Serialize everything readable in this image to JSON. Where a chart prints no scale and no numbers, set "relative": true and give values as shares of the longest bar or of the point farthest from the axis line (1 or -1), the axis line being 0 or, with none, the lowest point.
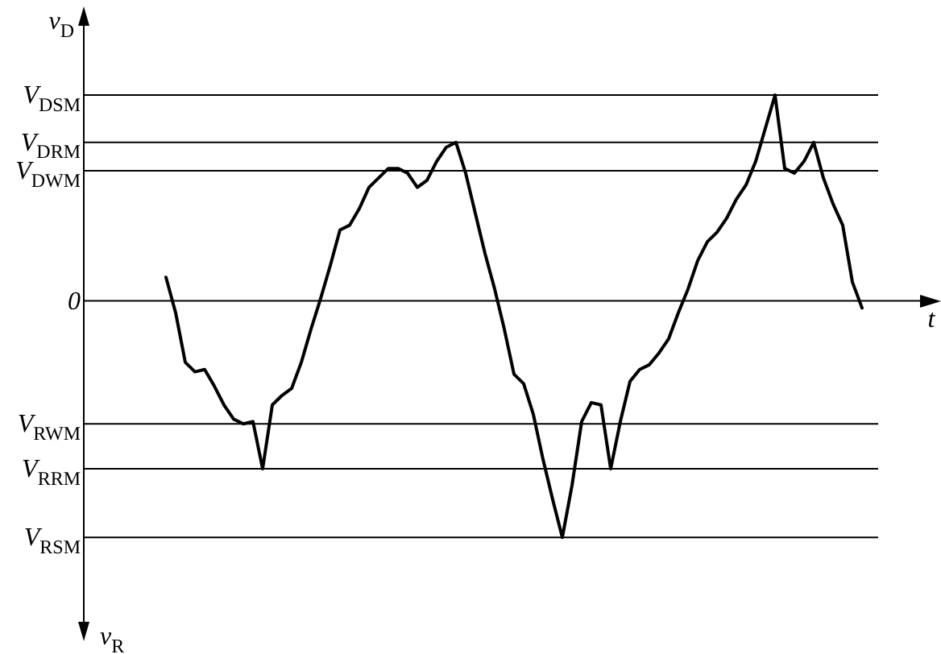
{
  "chart_data": {
    "type": "line",
    "relative": true,
    "color": "#000000",
    "marker": "none",
    "line_style": "solid",
    "legend": false,
    "xlabel": "t",
    "ylabel": "v$_{D}$",
    "annotations": [
      "v$_{R}$"
    ],
    "categories": [
      null,
      null,
      null,
      null,
      null,
      null,
      null,
      null,
      null,
      null,
      null,
      null,
      null,
      null,
      null,
      null,
      null,
      null,
      null,
      null,
      null,
      null,
      null,
      null,
      null,
      null,
      null,
      null,
      null,
      null,
      null,
      null,
      null,
      null,
      null,
      null,
      null,
      null,
      null,
      null,
      null,
      null,
      null,
      null,
      null,
      null,
      null,
      null,
      null,
      null,
      null,
      null,
      null,
      null,
      null,
      null,
      null,
      null,
      null,
      null,
      null,
      null,
      null,
      null,
      null,
      null,
      null,
      null,
      null,
      null,
      null,
      null,
      null
    ],
    "values": [
      0.1,
      -0.05,
      -0.26,
      -0.3,
      -0.29,
      -0.36,
      -0.44,
      -0.5,
      -0.52,
      -0.51,
      -0.71,
      -0.44,
      -0.4,
      -0.37,
      -0.26,
      -0.12,
      0.01,
      0.15,
      0.3,
      0.32,
      0.39,
      0.48,
      0.52,
      0.56,
      0.56,
      0.54,
      0.48,
      0.51,
      0.59,
      0.65,
      0.67,
      0.54,
      0.37,
      0.2,
      0.05,
      -0.12,
      -0.31,
      -0.35,
      -0.48,
      -0.67,
      -0.84,
      -1,
      -0.78,
      -0.51,
      -0.43,
      -0.44,
      -0.71,
      -0.51,
      -0.34,
      -0.29,
      -0.27,
      -0.22,
      -0.16,
      -0.05,
      0.05,
      0.17,
      0.25,
      0.29,
      0.35,
      0.43,
      0.49,
      0.59,
      0.73,
      0.87,
      0.56,
      0.54,
      0.59,
      0.67,
      0.52,
      0.41,
      0.32,
      0.08,
      -0.03
    ],
    "ref_lines": [
      {
        "axis": "y",
        "value": 0.87,
        "label": "V$_{DSM}$"
      },
      {
        "axis": "y",
        "value": 0.67,
        "label": "V$_{DRM}$"
      },
      {
        "axis": "y",
        "value": 0.55,
        "label": "V$_{DWM}$"
      },
      {
        "axis": "y",
        "value": 0,
        "label": "0"
      },
      {
        "axis": "y",
        "value": -0.52,
        "label": "V$_{RWM}$"
      },
      {
        "axis": "y",
        "value": -0.71,
        "label": "V$_{RRM}$"
      },
      {
        "axis": "y",
        "value": -1,
        "label": "V$_{RSM}$"
      }
    ]
  }
}
